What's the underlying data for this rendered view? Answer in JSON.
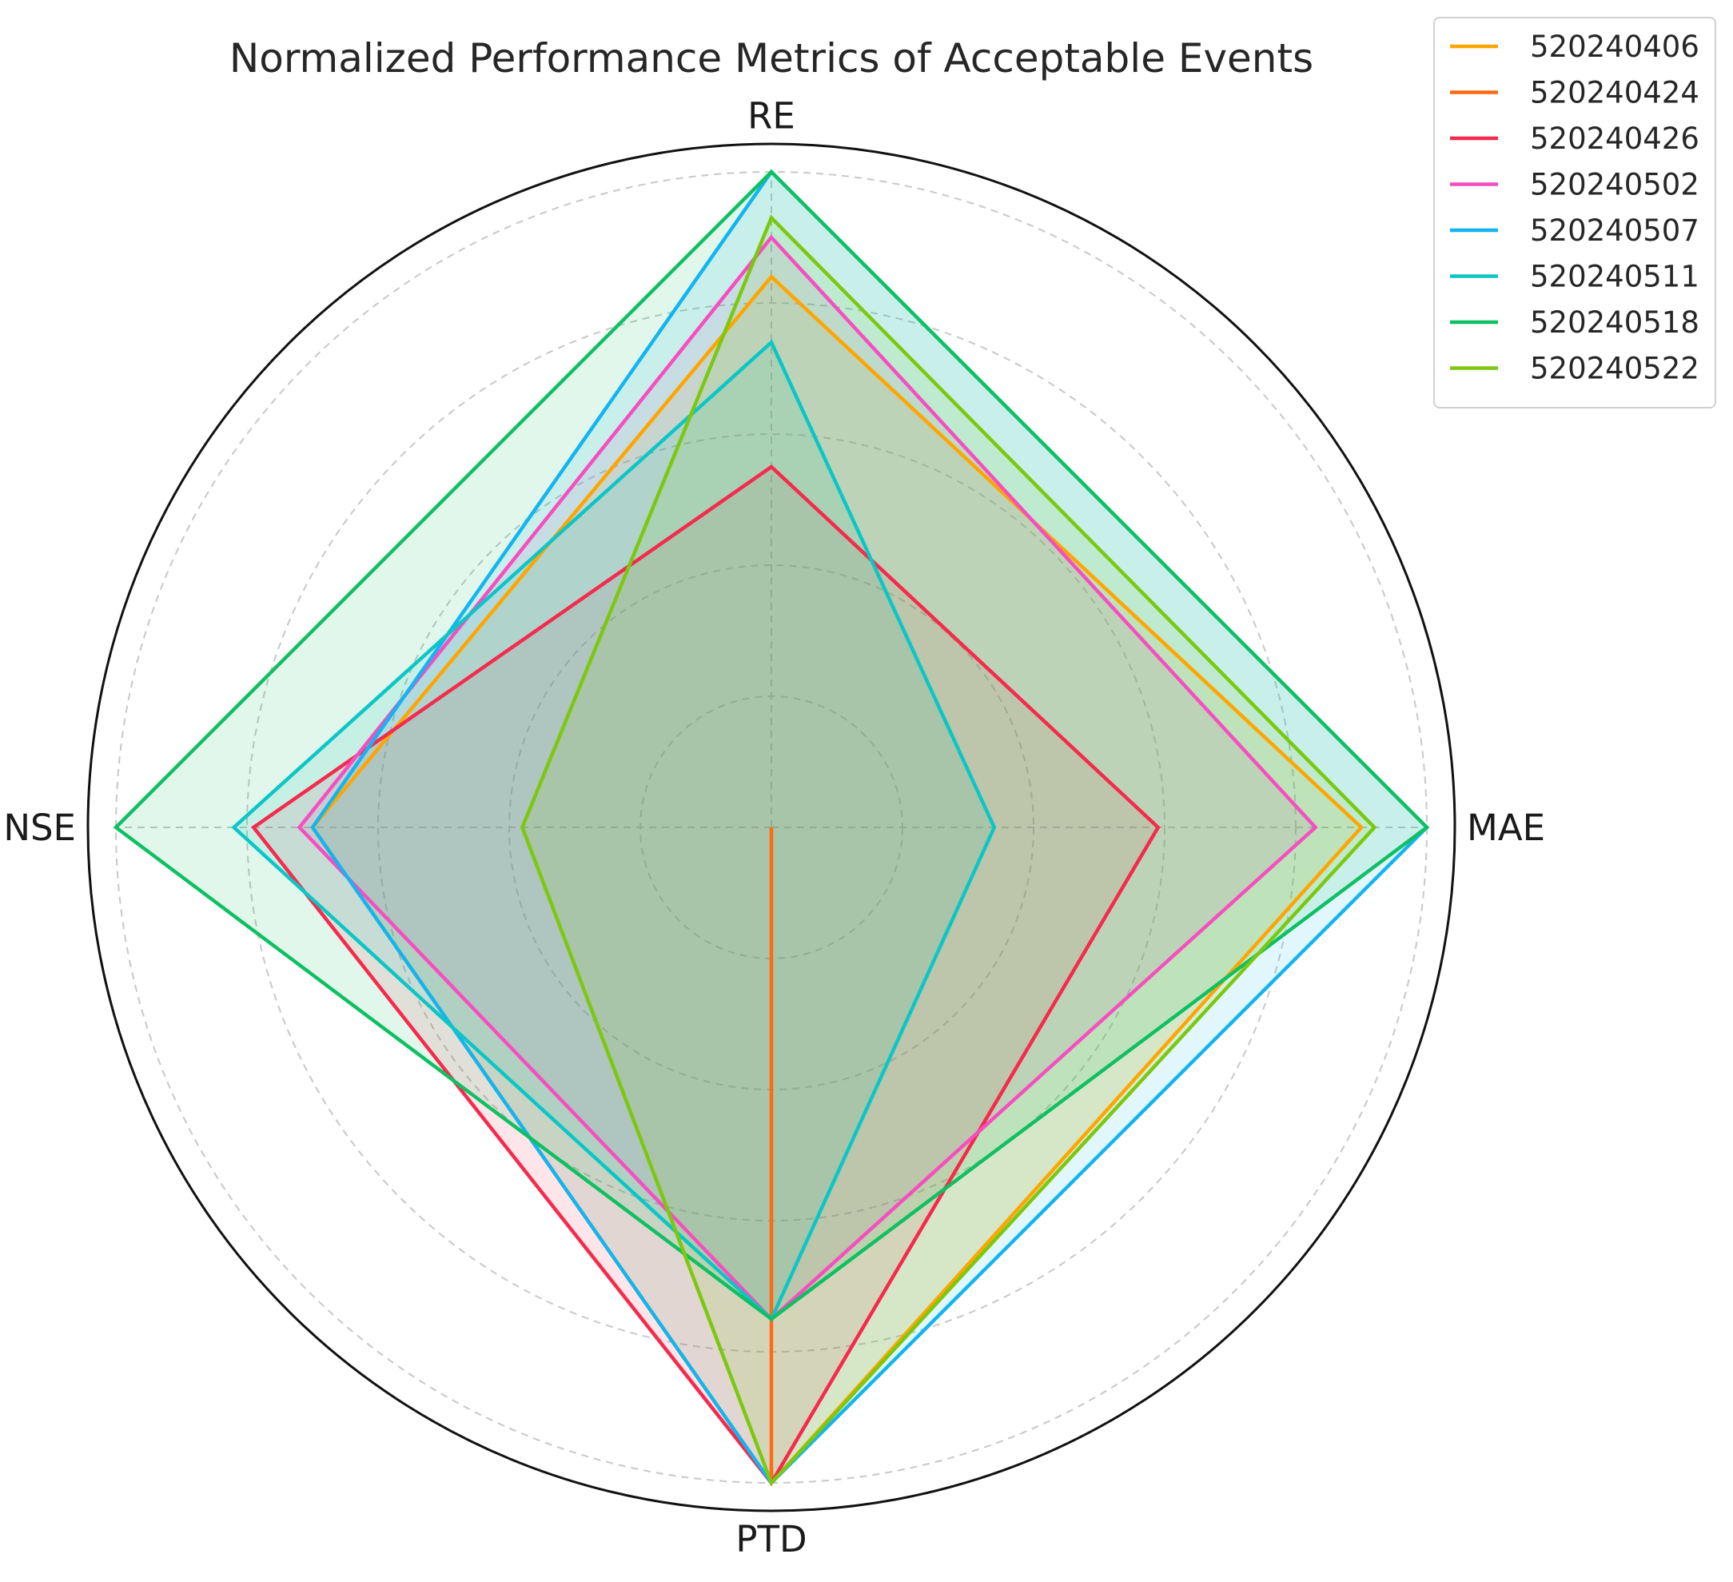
{
  "chart_data": {
    "type": "radar",
    "title": "Normalized Performance Metrics of Acceptable Events",
    "axes": [
      "RE",
      "MAE",
      "PTD",
      "NSE"
    ],
    "rlim": [
      0,
      1
    ],
    "grid": true,
    "legend_position": "top-right",
    "series": [
      {
        "name": "520240406",
        "color": "#FFA500",
        "values": [
          0.84,
          0.9,
          1.0,
          0.7
        ],
        "fill_opacity": 0.12
      },
      {
        "name": "520240424",
        "color": "#FF6A13",
        "values": [
          0.0,
          0.0,
          1.0,
          0.0
        ],
        "fill_opacity": 0.12
      },
      {
        "name": "520240426",
        "color": "#F52A4C",
        "values": [
          0.55,
          0.59,
          1.0,
          0.79
        ],
        "fill_opacity": 0.12
      },
      {
        "name": "520240502",
        "color": "#F64EC0",
        "values": [
          0.9,
          0.83,
          0.75,
          0.72
        ],
        "fill_opacity": 0.12
      },
      {
        "name": "520240507",
        "color": "#12B5F0",
        "values": [
          1.0,
          1.0,
          1.0,
          0.7
        ],
        "fill_opacity": 0.12
      },
      {
        "name": "520240511",
        "color": "#0BC6C6",
        "values": [
          0.74,
          0.34,
          0.75,
          0.82
        ],
        "fill_opacity": 0.12
      },
      {
        "name": "520240518",
        "color": "#0FC063",
        "values": [
          1.0,
          1.0,
          0.75,
          1.0
        ],
        "fill_opacity": 0.12
      },
      {
        "name": "520240522",
        "color": "#7BC80F",
        "values": [
          0.93,
          0.92,
          1.0,
          0.38
        ],
        "fill_opacity": 0.12
      }
    ]
  }
}
